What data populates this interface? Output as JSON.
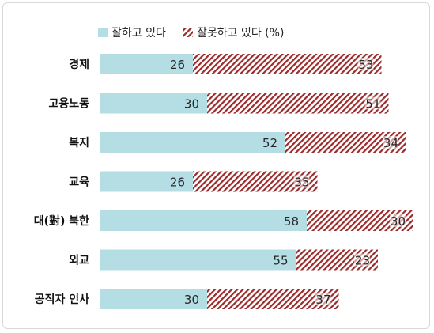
{
  "chart_data": {
    "type": "bar",
    "orientation": "horizontal",
    "stacked": true,
    "categories": [
      "경제",
      "고용노동",
      "복지",
      "교육",
      "대(對) 북한",
      "외교",
      "공직자 인사"
    ],
    "series": [
      {
        "name": "잘하고 있다",
        "values": [
          26,
          30,
          52,
          26,
          58,
          55,
          30
        ],
        "color": "#b4dde4",
        "pattern": "solid"
      },
      {
        "name": "잘못하고 있다 (%)",
        "values": [
          53,
          51,
          34,
          35,
          30,
          23,
          37
        ],
        "color": "#9b2a2a",
        "pattern": "diagonal-hatch"
      }
    ],
    "xlim": [
      0,
      100
    ],
    "grid": false,
    "legend_position": "top"
  }
}
